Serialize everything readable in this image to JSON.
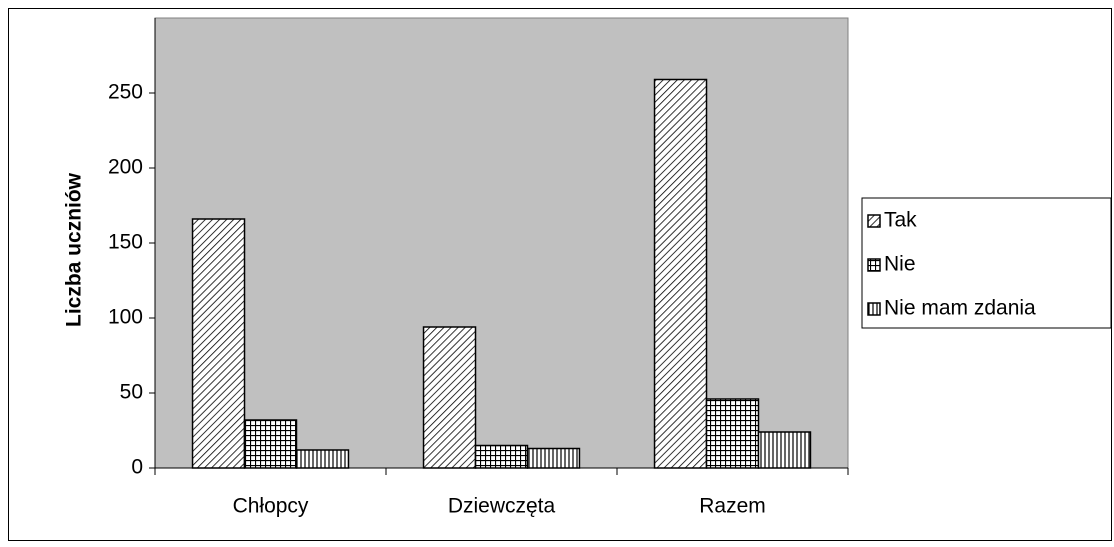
{
  "chart_data": {
    "type": "bar",
    "y_label": "Liczba uczniów",
    "categories": [
      "Chłopcy",
      "Dziewczęta",
      "Razem"
    ],
    "series": [
      {
        "name": "Tak",
        "color": "#000000",
        "pattern": "diagonal",
        "values": [
          166,
          94,
          259
        ]
      },
      {
        "name": "Nie",
        "color": "#000000",
        "pattern": "grid",
        "values": [
          32,
          15,
          46
        ]
      },
      {
        "name": "Nie mam zdania",
        "color": "#000000",
        "pattern": "vertical",
        "values": [
          12,
          13,
          24
        ]
      }
    ],
    "ylim": [
      0,
      300
    ],
    "yticks": [
      0,
      50,
      100,
      150,
      200,
      250
    ],
    "legend": "right",
    "plot_background": "#c0c0c0"
  }
}
